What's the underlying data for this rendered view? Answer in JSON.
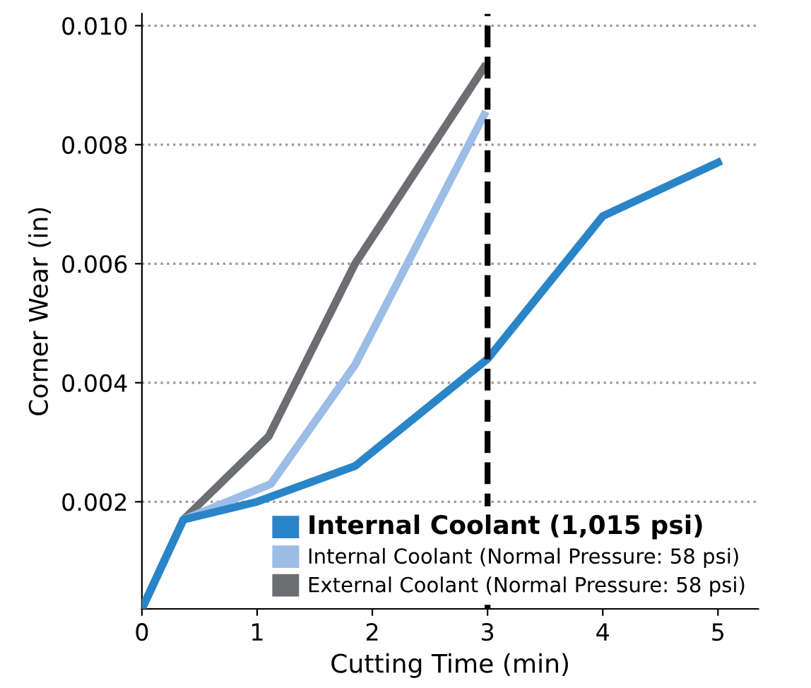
{
  "chart_data": {
    "type": "line",
    "xlabel": "Cutting Time (min)",
    "ylabel": "Corner Wear (in)",
    "xlim": [
      0,
      5.35
    ],
    "ylim": [
      0.0002,
      0.0102
    ],
    "xticks": [
      0,
      1,
      2,
      3,
      4,
      5
    ],
    "yticks": [
      {
        "value": 0.002,
        "label": "0.002"
      },
      {
        "value": 0.004,
        "label": "0.004"
      },
      {
        "value": 0.006,
        "label": "0.006"
      },
      {
        "value": 0.008,
        "label": "0.008"
      },
      {
        "value": 0.01,
        "label": "0.010"
      }
    ],
    "grid": "y",
    "legend": "bottom right",
    "marker": "none",
    "line_style": "solid",
    "ref_lines": [
      {
        "axis": "x",
        "value": 3,
        "label": null,
        "color": "#000000",
        "line_style": "dashed"
      }
    ],
    "series": [
      {
        "name": "Internal Coolant (1,015 psi)",
        "color": "#2a85c8",
        "x": [
          0,
          0.36,
          1,
          1.85,
          3,
          4,
          5
        ],
        "values": [
          0.0002,
          0.0017,
          0.002,
          0.0026,
          0.0044,
          0.0068,
          0.0077
        ]
      },
      {
        "name": "Internal Coolant (Normal Pressure: 58 psi)",
        "color": "#9bbde6",
        "x": [
          0,
          0.36,
          1.12,
          1.85,
          2.97
        ],
        "values": [
          0.0002,
          0.0017,
          0.0023,
          0.0043,
          0.0085
        ]
      },
      {
        "name": "External Coolant (Normal Pressure: 58 psi)",
        "color": "#6d6e71",
        "x": [
          0,
          0.36,
          1.1,
          1.85,
          2.97
        ],
        "values": [
          0.0002,
          0.0017,
          0.0031,
          0.006,
          0.0093
        ]
      }
    ]
  }
}
